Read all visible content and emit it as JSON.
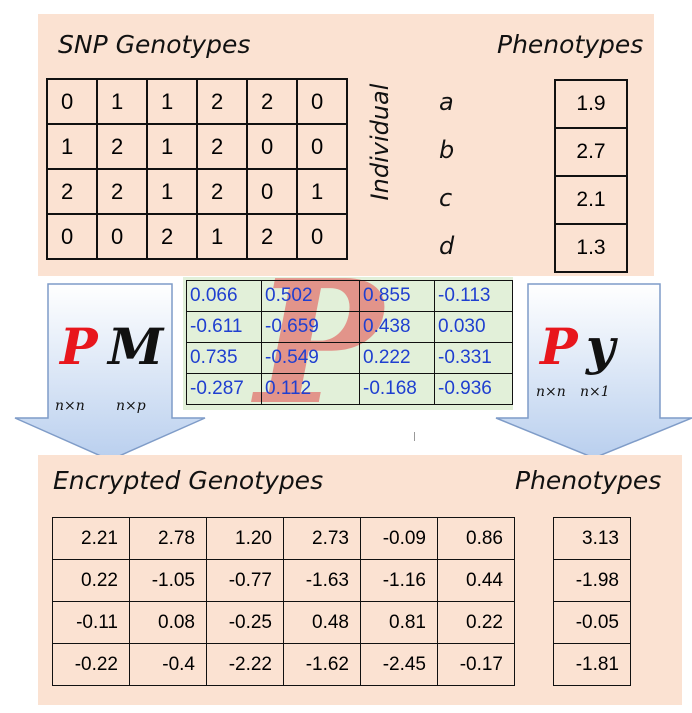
{
  "top": {
    "genotypes_title": "SNP Genotypes",
    "phenotypes_title": "Phenotypes",
    "individual_label": "Individual",
    "individuals": [
      "a",
      "b",
      "c",
      "d"
    ],
    "genotype_rows": [
      [
        "0",
        "1",
        "1",
        "2",
        "2",
        "0"
      ],
      [
        "1",
        "2",
        "1",
        "2",
        "0",
        "0"
      ],
      [
        "2",
        "2",
        "1",
        "2",
        "0",
        "1"
      ],
      [
        "0",
        "0",
        "2",
        "1",
        "2",
        "0"
      ]
    ],
    "phenotypes": [
      "1.9",
      "2.7",
      "2.1",
      "1.3"
    ]
  },
  "left_arrow": {
    "p": "P",
    "m": "M",
    "p_dim": "n×n",
    "m_dim": "n×p"
  },
  "right_arrow": {
    "p": "P",
    "y": "y",
    "p_dim": "n×n",
    "y_dim": "n×1"
  },
  "key_matrix": {
    "symbol": "P",
    "rows": [
      [
        "0.066",
        "0.502",
        "0.855",
        "-0.113"
      ],
      [
        "-0.611",
        "-0.659",
        "0.438",
        "0.030"
      ],
      [
        "0.735",
        "-0.549",
        "0.222",
        "-0.331"
      ],
      [
        "-0.287",
        "0.112",
        "-0.168",
        "-0.936"
      ]
    ]
  },
  "bottom": {
    "genotypes_title": "Encrypted Genotypes",
    "phenotypes_title": "Phenotypes",
    "genotype_rows": [
      [
        "2.21",
        "2.78",
        "1.20",
        "2.73",
        "-0.09",
        "0.86"
      ],
      [
        "0.22",
        "-1.05",
        "-0.77",
        "-1.63",
        "-1.16",
        "0.44"
      ],
      [
        "-0.11",
        "0.08",
        "-0.25",
        "0.48",
        "0.81",
        "0.22"
      ],
      [
        "-0.22",
        "-0.4",
        "-2.22",
        "-1.62",
        "-2.45",
        "-0.17"
      ]
    ],
    "phenotypes": [
      "3.13",
      "-1.98",
      "-0.05",
      "-1.81"
    ]
  },
  "colors": {
    "panel": "#fbe2d2",
    "arrow": "#c7d9f1",
    "key_bg": "#e2f0d9",
    "key_text": "#1f3fd0",
    "red": "#e8161c"
  }
}
